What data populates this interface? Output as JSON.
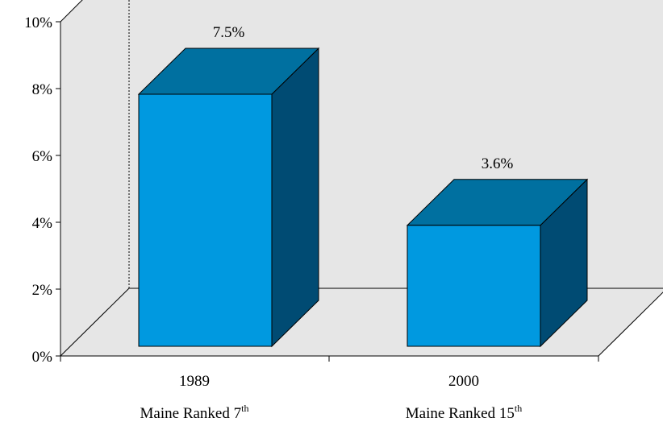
{
  "chart_data": {
    "type": "bar",
    "style": "3d",
    "categories": [
      "1989",
      "2000"
    ],
    "values": [
      7.5,
      3.6
    ],
    "data_labels": [
      "7.5%",
      "3.6%"
    ],
    "category_sublabels": [
      {
        "text": "Maine Ranked 7",
        "sup": "th"
      },
      {
        "text": "Maine Ranked 15",
        "sup": "th"
      }
    ],
    "y_ticks": [
      0,
      2,
      4,
      6,
      8,
      10
    ],
    "y_tick_labels": [
      "0%",
      "2%",
      "4%",
      "6%",
      "8%",
      "10%"
    ],
    "ylim": [
      0,
      10
    ],
    "grid": false,
    "legend": "none",
    "title": "",
    "xlabel": "",
    "ylabel": "",
    "colors": {
      "front": "#0099e0",
      "top": "#0070a0",
      "side": "#004b73",
      "wall": "#e6e6e6",
      "outline": "#000000"
    }
  }
}
